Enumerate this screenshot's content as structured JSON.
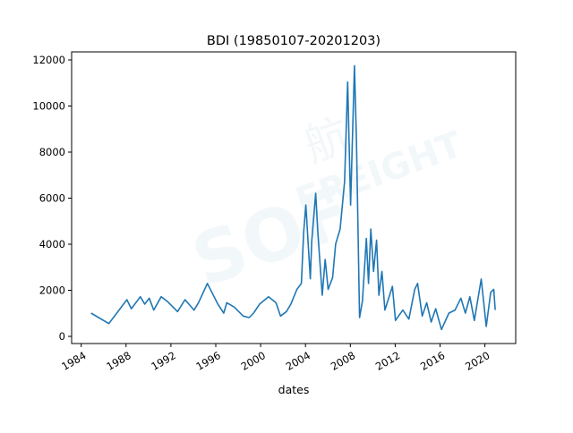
{
  "chart_data": {
    "type": "line",
    "title": "BDI (19850107-20201203)",
    "xlabel": "dates",
    "ylabel": "",
    "xlim": [
      1984.2,
      2021.7
    ],
    "ylim": [
      -300,
      12350
    ],
    "xticks": [
      1984,
      1988,
      1992,
      1996,
      2000,
      2004,
      2008,
      2012,
      2016,
      2020
    ],
    "yticks": [
      0,
      2000,
      4000,
      6000,
      8000,
      10000,
      12000
    ],
    "grid": false,
    "line_color": "#1f77b4",
    "watermark": "SOF 航 FREIGHT",
    "series": [
      {
        "x": [
          1984.88,
          1986.47,
          1988.07,
          1988.47,
          1989.27,
          1989.67,
          1990.07,
          1990.47,
          1991.13,
          1991.66,
          1992.59,
          1993.26,
          1994.06,
          1994.46,
          1995.25,
          1995.65,
          1996.18,
          1996.71,
          1996.98,
          1997.65,
          1998.45,
          1998.98,
          1999.37,
          1999.91,
          2000.7,
          2001.37,
          2001.77,
          2002.3,
          2002.7,
          2003.23,
          2003.63,
          2003.84,
          2004.03,
          2004.43,
          2004.56,
          2004.91,
          2005.1,
          2005.49,
          2005.76,
          2006.02,
          2006.42,
          2006.69,
          2007.09,
          2007.49,
          2007.76,
          2008.02,
          2008.37,
          2008.55,
          2008.82,
          2009.08,
          2009.43,
          2009.62,
          2009.83,
          2010.07,
          2010.34,
          2010.55,
          2010.82,
          2011.08,
          2011.75,
          2012.02,
          2012.68,
          2013.22,
          2013.74,
          2014.0,
          2014.41,
          2014.81,
          2015.21,
          2015.61,
          2016.13,
          2016.79,
          2017.33,
          2017.86,
          2018.26,
          2018.66,
          2019.06,
          2019.67,
          2020.12,
          2020.52,
          2020.79,
          2020.92
        ],
        "y": [
          1010,
          557,
          1592,
          1200,
          1720,
          1400,
          1657,
          1140,
          1720,
          1530,
          1075,
          1592,
          1140,
          1460,
          2300,
          1915,
          1400,
          1010,
          1460,
          1270,
          880,
          815,
          1010,
          1400,
          1720,
          1460,
          880,
          1075,
          1400,
          2040,
          2300,
          4530,
          5700,
          2500,
          4140,
          6210,
          4530,
          1786,
          3340,
          2040,
          2550,
          4010,
          4660,
          6730,
          11040,
          5700,
          11750,
          8390,
          815,
          1530,
          4250,
          2300,
          4660,
          2820,
          4180,
          1786,
          2820,
          1140,
          2170,
          690,
          1140,
          750,
          2040,
          2300,
          880,
          1460,
          620,
          1200,
          300,
          1010,
          1140,
          1660,
          1010,
          1720,
          690,
          2490,
          430,
          1915,
          2040,
          1150
        ]
      }
    ]
  }
}
